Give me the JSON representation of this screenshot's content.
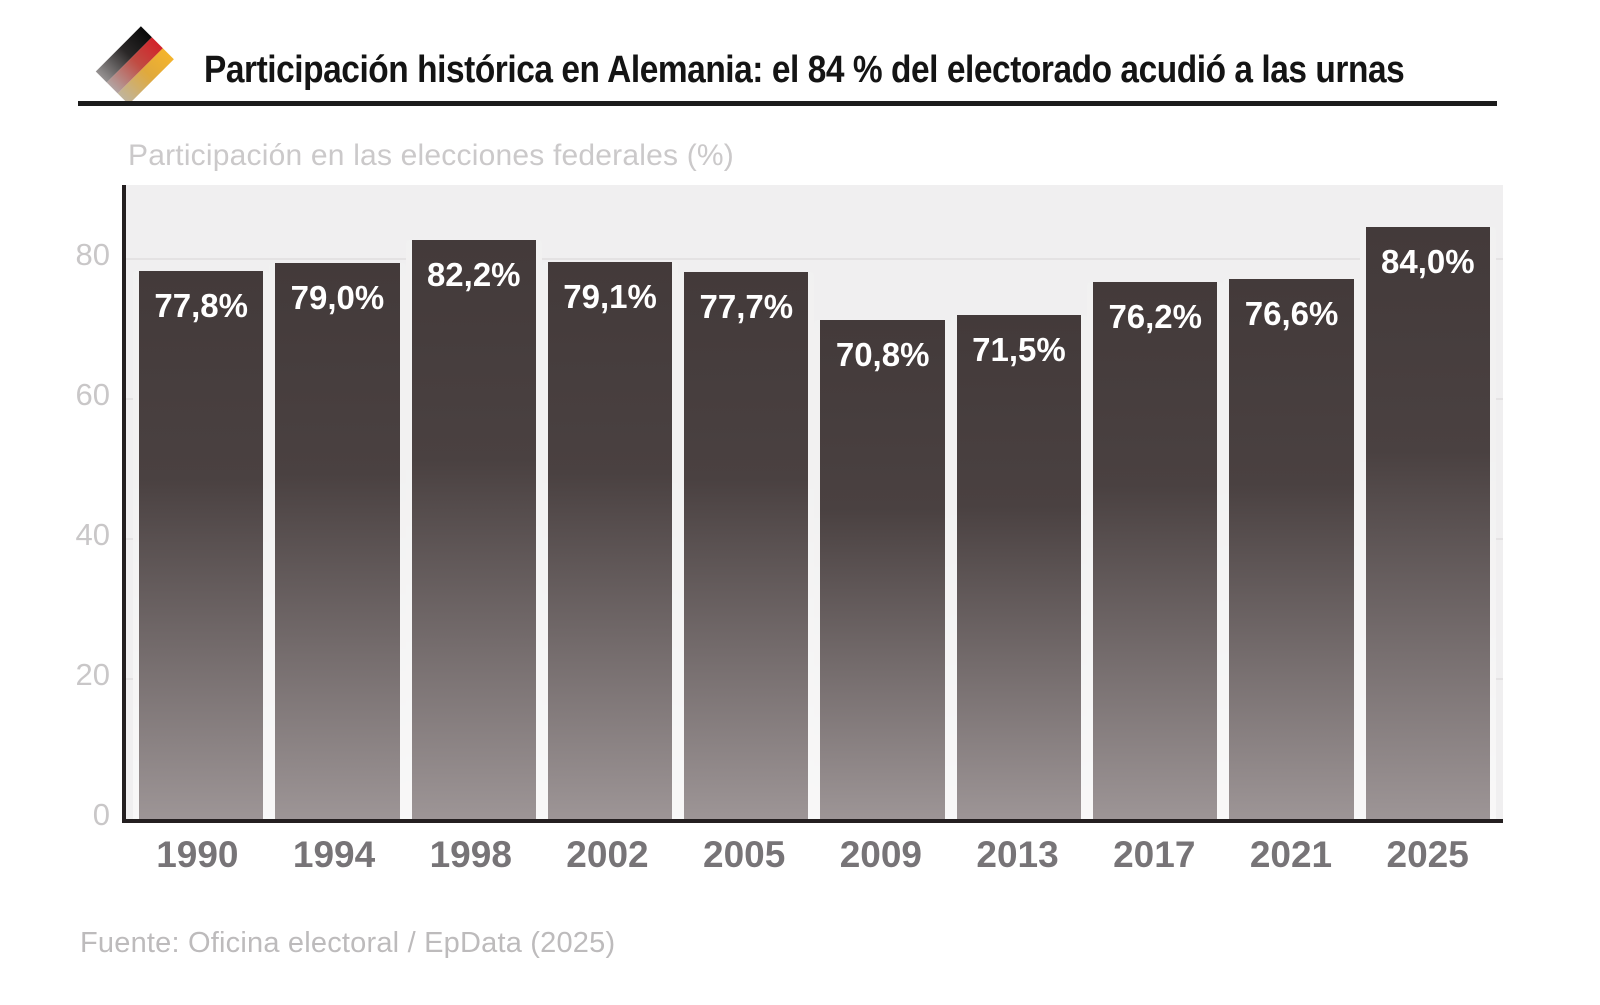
{
  "header": {
    "title": "Participación histórica en Alemania: el 84 % del electorado acudió a las urnas",
    "logo": {
      "name": "german-flag-diagonal-logo",
      "colors": {
        "black": "#0a0a0a",
        "red": "#d2232a",
        "gold": "#f4b42c",
        "fade_gray": "#9a9696"
      }
    }
  },
  "chart_data": {
    "type": "bar",
    "title": "Participación en las elecciones federales (%)",
    "categories": [
      "1990",
      "1994",
      "1998",
      "2002",
      "2005",
      "2009",
      "2013",
      "2017",
      "2021",
      "2025"
    ],
    "values": [
      77.8,
      79.0,
      82.2,
      79.1,
      77.7,
      70.8,
      71.5,
      76.2,
      76.6,
      84.0
    ],
    "value_labels": [
      "77,8%",
      "79,0%",
      "82,2%",
      "79,1%",
      "77,7%",
      "70,8%",
      "71,5%",
      "76,2%",
      "76,6%",
      "84,0%"
    ],
    "xlabel": "",
    "ylabel": "",
    "ylim": [
      0,
      90
    ],
    "yticks": [
      0,
      20,
      40,
      60,
      80
    ],
    "grid": "horizontal",
    "legend": "none",
    "colors": {
      "bar_top": "#433a3a",
      "bar_mid": "#4a4141",
      "bar_bottom": "#9d9596",
      "plot_bg": "#f0eff0",
      "gridline": "#e4e2e3",
      "axis": "#241f20",
      "value_label": "#ffffff",
      "tick_label": "#c9c7c8",
      "category_label": "#777477"
    }
  },
  "footer": {
    "source": "Fuente: Oficina electoral / EpData (2025)"
  }
}
